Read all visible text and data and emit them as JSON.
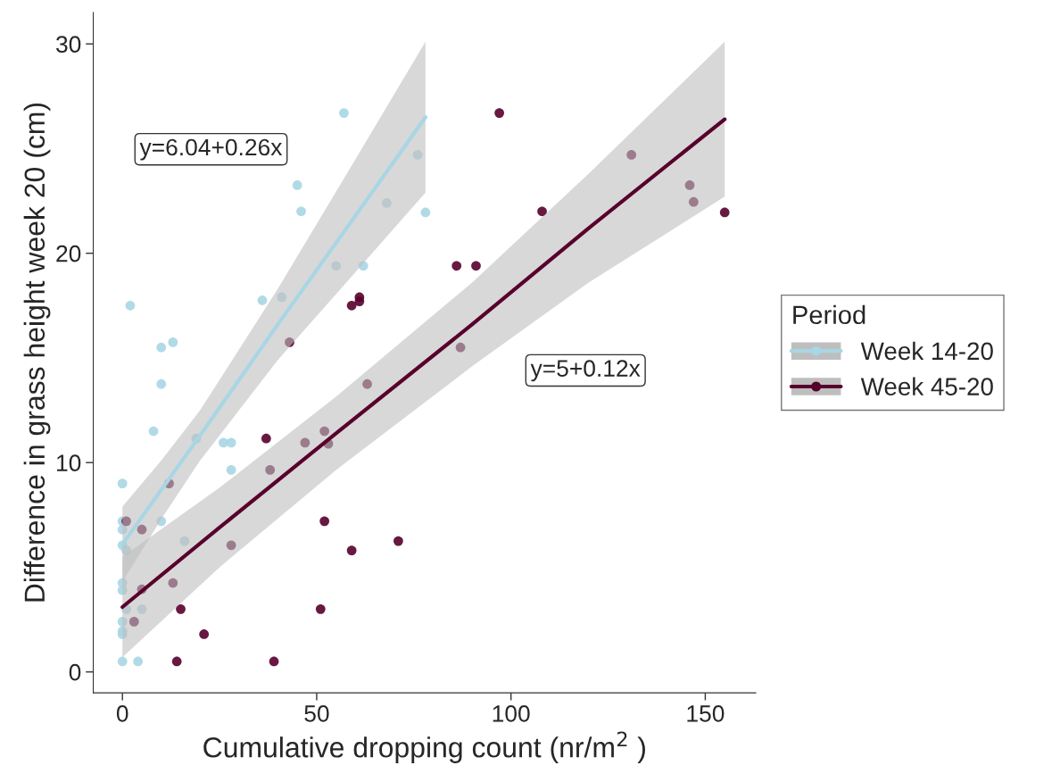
{
  "chart_data": {
    "type": "scatter",
    "xlabel": "Cumulative dropping count (nr/m$^{2}$ )",
    "ylabel": "Difference in grass height week 20 (cm)",
    "legend_title": "Period",
    "legend": "right",
    "grid": false,
    "xlim": [
      -7.5,
      163
    ],
    "xticks": [
      0,
      50,
      100,
      150
    ],
    "ylim": [
      -1,
      31.5
    ],
    "yticks": [
      0,
      10,
      20,
      30
    ],
    "annotations": [
      "y=6.04+0.26x",
      "y=5+0.12x"
    ],
    "series": [
      {
        "name": "Week 14-20",
        "marker": "circle",
        "color": "#a8d6e4",
        "x": [
          0,
          0,
          0,
          0,
          0,
          0,
          1,
          5,
          0,
          0,
          0,
          0,
          4,
          2,
          10,
          13,
          10,
          8,
          19,
          26,
          28,
          28,
          10,
          16,
          1,
          36,
          41,
          57,
          76,
          45,
          46,
          68,
          78,
          55,
          62
        ],
        "values": [
          9.0,
          7.2,
          6.8,
          6.05,
          4.25,
          3.9,
          3.0,
          3.0,
          2.4,
          1.95,
          1.8,
          0.5,
          0.5,
          17.5,
          15.5,
          15.75,
          13.75,
          11.5,
          11.15,
          10.95,
          10.95,
          9.65,
          7.2,
          6.25,
          5.8,
          17.75,
          17.9,
          26.7,
          24.7,
          23.25,
          22.0,
          22.4,
          21.95,
          19.4,
          19.4
        ]
      },
      {
        "name": "Week 45-20",
        "marker": "circle",
        "color": "#58002c",
        "x": [
          1,
          5,
          5,
          13,
          3,
          15,
          21,
          14,
          39,
          12,
          28,
          38,
          37,
          47,
          43,
          86,
          91,
          59,
          61,
          61,
          87,
          63,
          52,
          53,
          52,
          59,
          71,
          51,
          97,
          131,
          146,
          147,
          155,
          108
        ],
        "values": [
          7.2,
          6.8,
          3.95,
          4.25,
          2.4,
          3.0,
          1.8,
          0.5,
          0.5,
          9.0,
          6.05,
          9.65,
          11.15,
          10.95,
          15.75,
          19.4,
          19.4,
          17.5,
          17.9,
          17.7,
          15.5,
          13.75,
          11.5,
          10.9,
          7.2,
          5.8,
          6.25,
          3.0,
          26.7,
          24.7,
          23.25,
          22.45,
          21.95,
          22.0
        ]
      },
      {
        "type": "line",
        "line_style": "solid",
        "color": "#a8d6e4",
        "x": [
          0,
          10,
          20,
          40,
          60,
          78
        ],
        "values": [
          6.1,
          8.7,
          11.3,
          16.6,
          21.8,
          26.5
        ],
        "lower": [
          4.3,
          7.3,
          10.1,
          14.9,
          19.1,
          22.9
        ],
        "upper": [
          7.9,
          10.1,
          12.5,
          18.3,
          24.5,
          30.1
        ]
      },
      {
        "type": "line",
        "line_style": "solid",
        "color": "#58002c",
        "x": [
          0,
          25,
          55,
          90,
          120,
          155
        ],
        "values": [
          3.1,
          6.9,
          11.4,
          16.6,
          21.2,
          26.4
        ],
        "lower": [
          0.7,
          5.0,
          9.65,
          14.6,
          18.6,
          22.7
        ],
        "upper": [
          5.5,
          8.8,
          13.15,
          18.6,
          23.8,
          30.1
        ]
      }
    ]
  }
}
